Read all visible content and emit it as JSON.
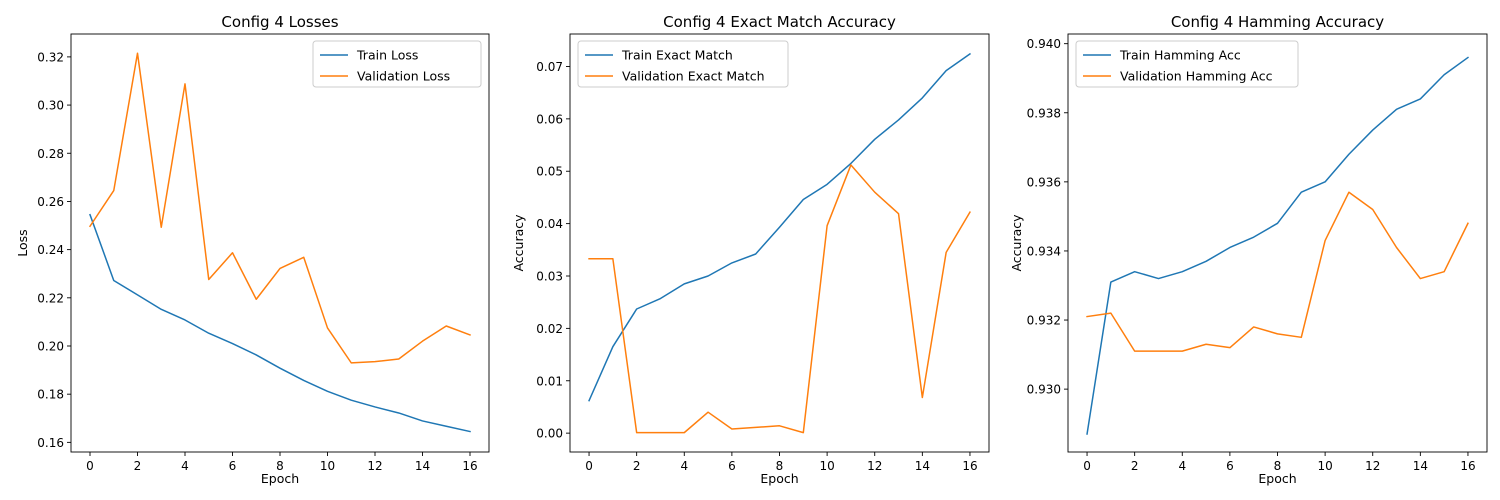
{
  "chart_data": [
    {
      "type": "line",
      "title": "Config 4 Losses",
      "xlabel": "Epoch",
      "ylabel": "Loss",
      "xlim": [
        -0.8,
        16.8
      ],
      "ylim": [
        0.156,
        0.3295
      ],
      "x_ticks": [
        0,
        2,
        4,
        6,
        8,
        10,
        12,
        14,
        16
      ],
      "y_ticks": [
        0.16,
        0.18,
        0.2,
        0.22,
        0.24,
        0.26,
        0.28,
        0.3,
        0.32
      ],
      "y_tick_labels": [
        "0.16",
        "0.18",
        "0.20",
        "0.22",
        "0.24",
        "0.26",
        "0.28",
        "0.30",
        "0.32"
      ],
      "legend_position": "top-right",
      "grid": false,
      "x": [
        0,
        1,
        2,
        3,
        4,
        5,
        6,
        7,
        8,
        9,
        10,
        11,
        12,
        13,
        14,
        15,
        16
      ],
      "series": [
        {
          "name": "Train Loss",
          "color": "#1f77b4",
          "values": [
            0.2545,
            0.2272,
            0.2212,
            0.2152,
            0.2108,
            0.2053,
            0.201,
            0.1963,
            0.1908,
            0.1857,
            0.1812,
            0.1775,
            0.1747,
            0.1722,
            0.1689,
            0.1667,
            0.1645
          ]
        },
        {
          "name": "Validation Loss",
          "color": "#ff7f0e",
          "values": [
            0.2497,
            0.2645,
            0.3215,
            0.2493,
            0.3088,
            0.2276,
            0.2387,
            0.2194,
            0.2322,
            0.2368,
            0.2075,
            0.193,
            0.1935,
            0.1946,
            0.202,
            0.2083,
            0.2046
          ]
        }
      ]
    },
    {
      "type": "line",
      "title": "Config 4 Exact Match Accuracy",
      "xlabel": "Epoch",
      "ylabel": "Accuracy",
      "xlim": [
        -0.8,
        16.8
      ],
      "ylim": [
        -0.0036,
        0.0762
      ],
      "x_ticks": [
        0,
        2,
        4,
        6,
        8,
        10,
        12,
        14,
        16
      ],
      "y_ticks": [
        0.0,
        0.01,
        0.02,
        0.03,
        0.04,
        0.05,
        0.06,
        0.07
      ],
      "y_tick_labels": [
        "0.00",
        "0.01",
        "0.02",
        "0.03",
        "0.04",
        "0.05",
        "0.06",
        "0.07"
      ],
      "legend_position": "top-left",
      "grid": false,
      "x": [
        0,
        1,
        2,
        3,
        4,
        5,
        6,
        7,
        8,
        9,
        10,
        11,
        12,
        13,
        14,
        15,
        16
      ],
      "series": [
        {
          "name": "Train Exact Match",
          "color": "#1f77b4",
          "values": [
            0.0062,
            0.0165,
            0.0237,
            0.0257,
            0.0285,
            0.03,
            0.0325,
            0.0342,
            0.0393,
            0.0446,
            0.0475,
            0.0515,
            0.0561,
            0.0598,
            0.064,
            0.0692,
            0.0724
          ]
        },
        {
          "name": "Validation Exact Match",
          "color": "#ff7f0e",
          "values": [
            0.0333,
            0.0333,
            0.0001,
            0.0001,
            0.0001,
            0.004,
            0.0008,
            0.0011,
            0.0014,
            0.0001,
            0.0396,
            0.0512,
            0.046,
            0.0419,
            0.0068,
            0.0345,
            0.0422
          ]
        }
      ]
    },
    {
      "type": "line",
      "title": "Config 4 Hamming Accuracy",
      "xlabel": "Epoch",
      "ylabel": "Accuracy",
      "xlim": [
        -0.8,
        16.8
      ],
      "ylim": [
        0.92818,
        0.94028
      ],
      "x_ticks": [
        0,
        2,
        4,
        6,
        8,
        10,
        12,
        14,
        16
      ],
      "y_ticks": [
        0.93,
        0.932,
        0.934,
        0.936,
        0.938,
        0.94
      ],
      "y_tick_labels": [
        "0.930",
        "0.932",
        "0.934",
        "0.936",
        "0.938",
        "0.940"
      ],
      "legend_position": "top-left",
      "grid": false,
      "x": [
        0,
        1,
        2,
        3,
        4,
        5,
        6,
        7,
        8,
        9,
        10,
        11,
        12,
        13,
        14,
        15,
        16
      ],
      "series": [
        {
          "name": "Train Hamming Acc",
          "color": "#1f77b4",
          "values": [
            0.9287,
            0.9331,
            0.9334,
            0.9332,
            0.9334,
            0.9337,
            0.9341,
            0.9344,
            0.9348,
            0.9357,
            0.936,
            0.9368,
            0.9375,
            0.9381,
            0.9384,
            0.9391,
            0.9396
          ]
        },
        {
          "name": "Validation Hamming Acc",
          "color": "#ff7f0e",
          "values": [
            0.9321,
            0.9322,
            0.9311,
            0.9311,
            0.9311,
            0.9313,
            0.9312,
            0.9318,
            0.9316,
            0.9315,
            0.9343,
            0.9357,
            0.9352,
            0.9341,
            0.9332,
            0.9334,
            0.9348
          ]
        }
      ]
    }
  ]
}
